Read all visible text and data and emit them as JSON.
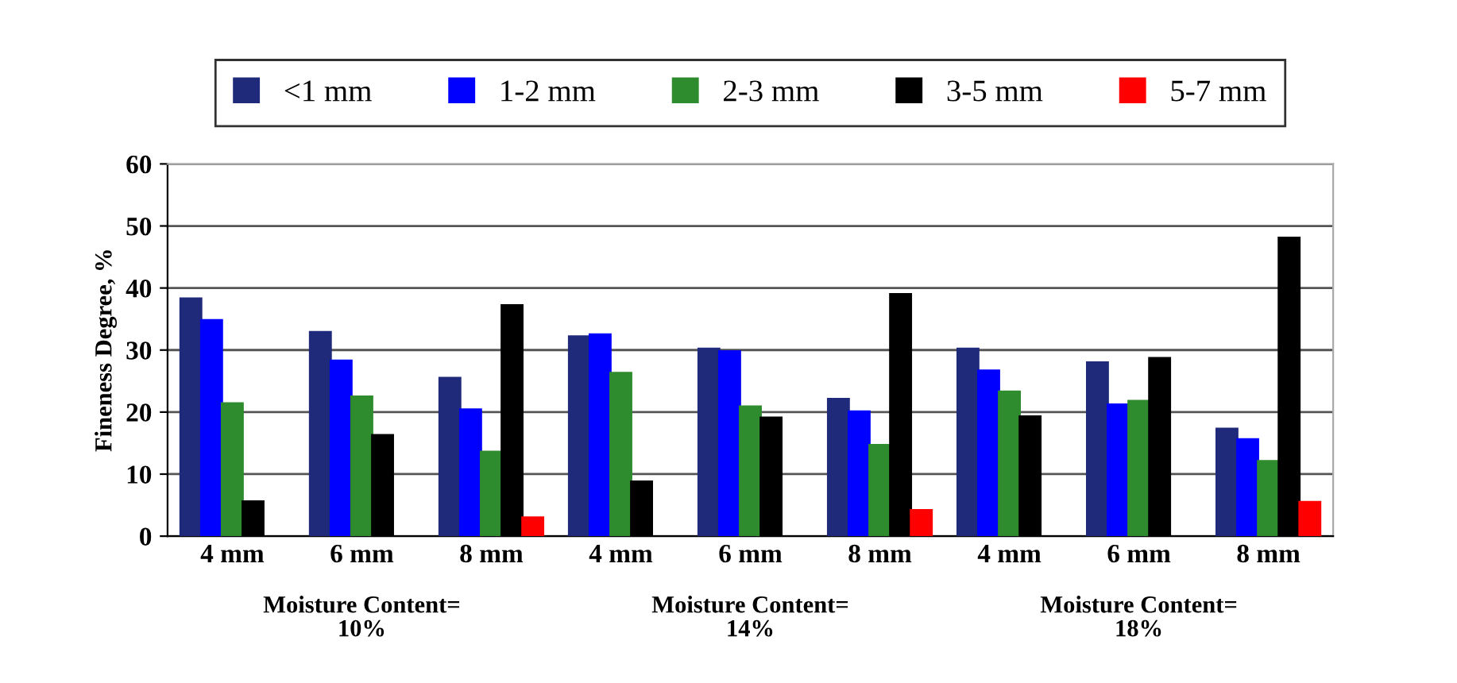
{
  "chart_data": {
    "type": "bar",
    "ylabel": "Fineness Degree, %",
    "categories": [
      "4 mm",
      "6 mm",
      "8 mm",
      "4 mm",
      "6 mm",
      "8 mm",
      "4 mm",
      "6 mm",
      "8 mm"
    ],
    "series": [
      {
        "name": "<1 mm",
        "color": "#1f2a7a",
        "values": [
          38.3,
          32.9,
          25.5,
          32.2,
          30.2,
          22.1,
          30.2,
          28.0,
          17.3
        ]
      },
      {
        "name": "1-2 mm",
        "color": "#0000ff",
        "values": [
          34.8,
          28.3,
          20.4,
          32.5,
          29.8,
          20.1,
          26.7,
          21.2,
          15.6
        ]
      },
      {
        "name": "2-3 mm",
        "color": "#2e8b2e",
        "values": [
          21.4,
          22.5,
          13.6,
          26.3,
          20.9,
          14.7,
          23.3,
          21.8,
          12.1
        ]
      },
      {
        "name": "3-5 mm",
        "color": "#000000",
        "values": [
          5.6,
          16.3,
          37.2,
          8.8,
          19.1,
          39.0,
          19.3,
          28.7,
          48.1
        ]
      },
      {
        "name": "5-7 mm",
        "color": "#ff0000",
        "values": [
          null,
          null,
          3.0,
          null,
          null,
          4.2,
          null,
          null,
          5.5
        ]
      }
    ],
    "annotations": [
      "Moisture Content=\n10%",
      "Moisture Content=\n14%",
      "Moisture Content=\n18%"
    ],
    "ylim": [
      0,
      60
    ],
    "yticks": [
      0,
      10,
      20,
      30,
      40,
      50,
      60
    ],
    "grid": "y",
    "legend": "top"
  }
}
